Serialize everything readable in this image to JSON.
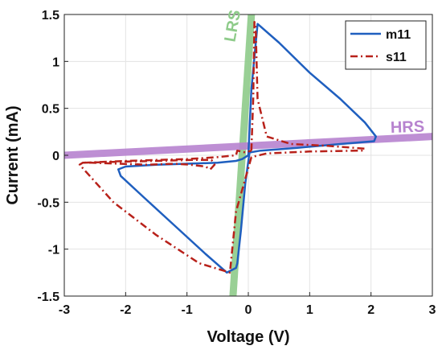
{
  "chart_data": {
    "type": "line",
    "title": "",
    "xlabel": "Voltage (V)",
    "ylabel": "Current (mA)",
    "xlim": [
      -3,
      3
    ],
    "ylim": [
      -1.5,
      1.5
    ],
    "xticks": [
      -3,
      -2,
      -1,
      0,
      1,
      2,
      3
    ],
    "yticks": [
      -1.5,
      -1,
      -0.5,
      0,
      0.5,
      1,
      1.5
    ],
    "xtick_labels": [
      "-3",
      "-2",
      "-1",
      "0",
      "1",
      "2",
      "3"
    ],
    "ytick_labels": [
      "-1.5",
      "-1",
      "-0.5",
      "0",
      "0.5",
      "1",
      "1.5"
    ],
    "grid": true,
    "legend_position": "top-right",
    "series": [
      {
        "name": "m11",
        "color": "#1f5fbf",
        "style": "solid",
        "x": [
          0.05,
          0.15,
          0.5,
          1.0,
          1.5,
          1.9,
          2.08,
          2.05,
          1.5,
          0.8,
          0.2,
          0.02,
          -0.05,
          -0.12,
          -0.18,
          -0.2,
          -0.35,
          -0.7,
          -1.2,
          -1.7,
          -2.08,
          -2.12,
          -2.0,
          -1.5,
          -1.0,
          -0.5,
          -0.2,
          -0.1,
          0.0,
          0.05
        ],
        "y": [
          0.7,
          1.4,
          1.2,
          0.88,
          0.6,
          0.35,
          0.2,
          0.15,
          0.12,
          0.08,
          0.05,
          0.03,
          -0.3,
          -0.8,
          -1.15,
          -1.2,
          -1.25,
          -1.05,
          -0.75,
          -0.45,
          -0.22,
          -0.15,
          -0.12,
          -0.1,
          -0.09,
          -0.08,
          -0.06,
          -0.04,
          0.0,
          0.7
        ]
      },
      {
        "name": "s11",
        "color": "#b8211a",
        "style": "dashdot",
        "x": [
          0.05,
          0.08,
          0.1,
          0.12,
          0.15,
          0.3,
          0.7,
          1.3,
          1.9,
          1.85,
          1.0,
          0.3,
          0.05,
          -0.2,
          -0.3,
          -0.8,
          -1.5,
          -2.2,
          -2.75,
          -2.7,
          -2.2,
          -1.5,
          -0.9,
          -0.6,
          -0.55,
          -0.62,
          -0.7,
          -0.95,
          -1.2,
          -1.65,
          -2.1,
          -2.55,
          -2.7,
          -2.0,
          -1.0,
          -0.5,
          -0.2,
          -0.18,
          -0.05,
          0.05
        ],
        "y": [
          0.05,
          0.6,
          1.42,
          1.35,
          0.6,
          0.2,
          0.12,
          0.1,
          0.07,
          0.05,
          0.04,
          0.02,
          -0.02,
          -0.6,
          -1.25,
          -1.15,
          -0.85,
          -0.5,
          -0.1,
          -0.08,
          -0.07,
          -0.06,
          -0.05,
          -0.05,
          -0.1,
          -0.15,
          -0.12,
          -0.1,
          -0.09,
          -0.1,
          -0.09,
          -0.08,
          -0.08,
          -0.06,
          -0.04,
          -0.02,
          0.0,
          0.05,
          0.03,
          0.05
        ]
      }
    ],
    "reference_lines": [
      {
        "label": "LRS",
        "color": "#8ecb8a",
        "x": [
          -0.25,
          0.05
        ],
        "y": [
          -1.5,
          1.5
        ]
      },
      {
        "label": "HRS",
        "color": "#b783cf",
        "x": [
          -3,
          3
        ],
        "y": [
          0.0,
          0.2
        ]
      }
    ]
  }
}
